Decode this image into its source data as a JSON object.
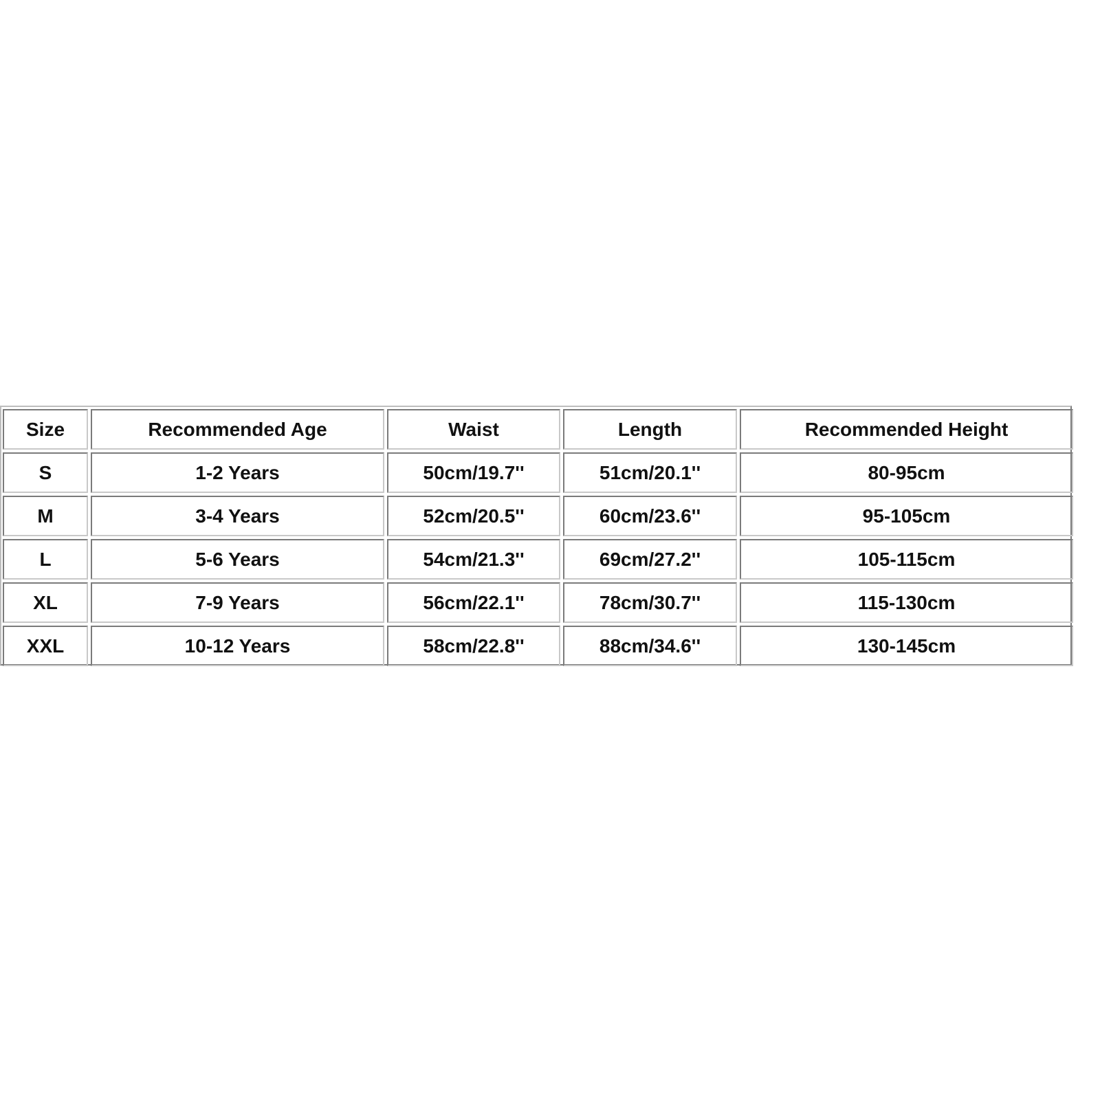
{
  "headers": [
    "Size",
    "Recommended Age",
    "Waist",
    "Length",
    "Recommended Height"
  ],
  "rows": [
    [
      "S",
      "1-2 Years",
      "50cm/19.7''",
      "51cm/20.1''",
      "80-95cm"
    ],
    [
      "M",
      "3-4 Years",
      "52cm/20.5''",
      "60cm/23.6''",
      "95-105cm"
    ],
    [
      "L",
      "5-6 Years",
      "54cm/21.3''",
      "69cm/27.2''",
      "105-115cm"
    ],
    [
      "XL",
      "7-9 Years",
      "56cm/22.1''",
      "78cm/30.7''",
      "115-130cm"
    ],
    [
      "XXL",
      "10-12 Years",
      "58cm/22.8''",
      "88cm/34.6''",
      "130-145cm"
    ]
  ]
}
